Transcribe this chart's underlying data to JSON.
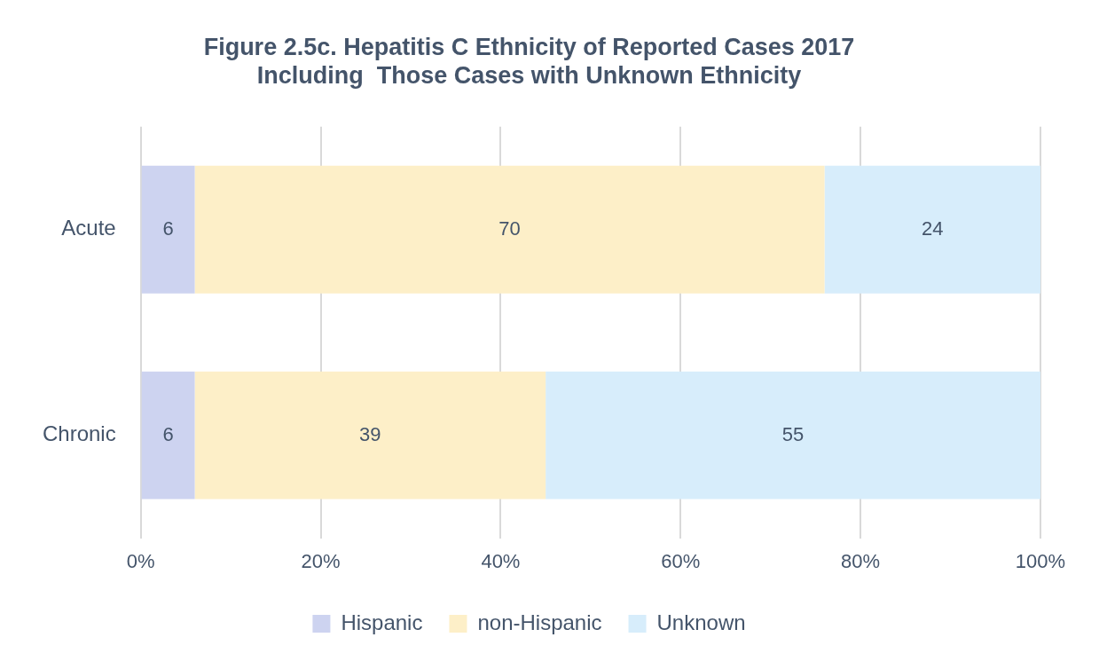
{
  "chart_data": {
    "type": "bar",
    "orientation": "horizontal",
    "stacked": true,
    "title": "Figure 2.5c. Hepatitis C Ethnicity of Reported Cases 2017\nIncluding  Those Cases with Unknown Ethnicity",
    "categories": [
      "Acute",
      "Chronic"
    ],
    "series": [
      {
        "name": "Hispanic",
        "color": "#cdd3f0",
        "values": [
          6,
          6
        ]
      },
      {
        "name": "non-Hispanic",
        "color": "#fdefc8",
        "values": [
          70,
          39
        ]
      },
      {
        "name": "Unknown",
        "color": "#d7edfb",
        "values": [
          24,
          55
        ]
      }
    ],
    "xlim": [
      0,
      100
    ],
    "xticks": [
      {
        "value": 0,
        "label": "0%"
      },
      {
        "value": 20,
        "label": "20%"
      },
      {
        "value": 40,
        "label": "40%"
      },
      {
        "value": 60,
        "label": "60%"
      },
      {
        "value": 80,
        "label": "80%"
      },
      {
        "value": 100,
        "label": "100%"
      }
    ],
    "grid": "x",
    "legend": "bottom",
    "data_labels": true
  }
}
